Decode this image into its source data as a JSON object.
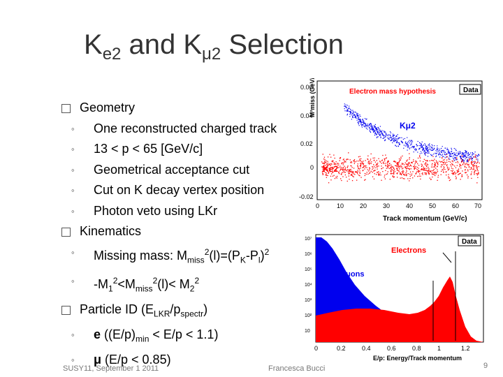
{
  "title": {
    "k1": "K",
    "sub1": "e2",
    "mid": " and K",
    "sub2": "μ2",
    "end": " Selection"
  },
  "bullets": {
    "geometry": "Geometry",
    "g1": "One reconstructed charged track",
    "g2": "13 < p < 65  [GeV/c]",
    "g3": "Geometrical acceptance cut",
    "g4": "Cut on K decay vertex position",
    "g5": "Photon veto using LKr",
    "kinematics": "Kinematics",
    "k1_a": "Missing mass: M",
    "k1_b": "miss",
    "k1_c": "2",
    "k1_d": "(l)=(P",
    "k1_e": "K",
    "k1_f": "-P",
    "k1_g": "l",
    "k1_h": ")",
    "k1_i": "2",
    "k2_a": "-M",
    "k2_b": "1",
    "k2_c": "2",
    "k2_d": "<M",
    "k2_e": "miss",
    "k2_f": "2",
    "k2_g": "(l)< M",
    "k2_h": "2",
    "k2_i": "2",
    "pid_a": "Particle ID (E",
    "pid_b": "LKR",
    "pid_c": "/p",
    "pid_d": "spectr",
    "pid_e": ")",
    "p1_a": "e",
    "p1_b": " ((E/p)",
    "p1_c": "min",
    "p1_d": " < E/p < 1.1)",
    "p2_a": "μ",
    "p2_b": "  (E/p < 0.85)"
  },
  "footer": {
    "left": "SUSY11, September 1 2011",
    "center": "Francesca Bucci",
    "page": "9"
  },
  "plot1": {
    "legend": "Electron mass hypothesis",
    "badge": "Data",
    "ylabel": "M²miss (GeV/c²)²",
    "xlabel": "Track momentum (GeV/c)",
    "yticks": [
      "0.06",
      "0.04",
      "0.02",
      "0",
      "-0.02"
    ],
    "xticks": [
      "0",
      "10",
      "20",
      "30",
      "40",
      "50",
      "60",
      "70"
    ],
    "label_kmu2": "Kμ2",
    "label_ke2": "Ke2"
  },
  "plot2": {
    "badge": "Data",
    "label_electrons": "Electrons",
    "label_muons": "Muons",
    "xlabel": "E/p: Energy/Track momentum",
    "yticks": [
      "10⁷",
      "10⁶",
      "10⁵",
      "10⁴",
      "10³",
      "10²",
      "10"
    ],
    "xticks": [
      "0",
      "0.2",
      "0.4",
      "0.6",
      "0.8",
      "1",
      "1.2"
    ]
  },
  "colors": {
    "electrons": "#ff0000",
    "muons": "#0000ee",
    "title": "#333333"
  }
}
